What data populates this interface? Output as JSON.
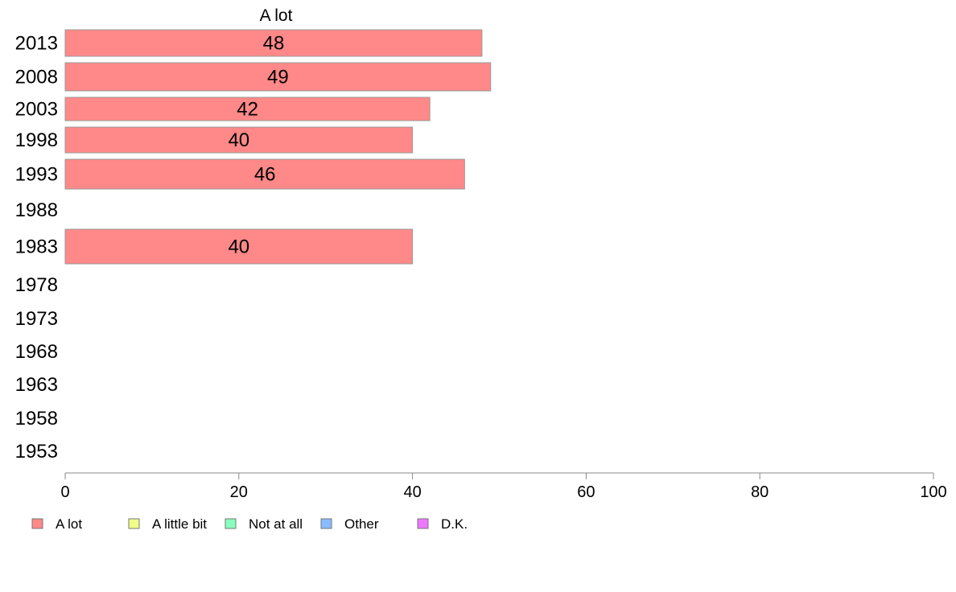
{
  "chart_data": {
    "type": "bar",
    "orientation": "horizontal",
    "title": "A lot",
    "categories": [
      "2013",
      "2008",
      "2003",
      "1998",
      "1993",
      "1988",
      "1983",
      "1978",
      "1973",
      "1968",
      "1963",
      "1958",
      "1953"
    ],
    "series": [
      {
        "name": "A lot",
        "color": "#ff8888",
        "values": [
          48,
          49,
          42,
          40,
          46,
          null,
          40,
          null,
          null,
          null,
          null,
          null,
          null
        ]
      }
    ],
    "xlim": [
      0,
      100
    ],
    "xticks": [
      "0",
      "20",
      "40",
      "60",
      "80",
      "100"
    ],
    "grid": false,
    "legend": {
      "placement": "bottom-left",
      "entries": [
        {
          "label": "A lot",
          "color": "#ff8888"
        },
        {
          "label": "A little bit",
          "color": "#eeff88"
        },
        {
          "label": "Not at all",
          "color": "#88ffbb"
        },
        {
          "label": "Other",
          "color": "#88bbff"
        },
        {
          "label": "D.K.",
          "color": "#ee77ff"
        }
      ]
    }
  }
}
